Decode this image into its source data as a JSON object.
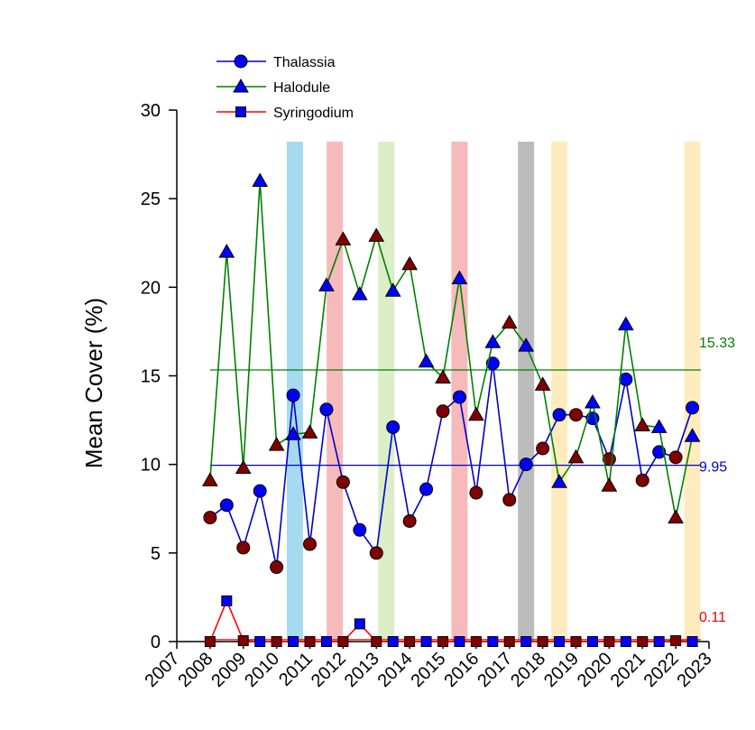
{
  "chart_data": {
    "type": "line",
    "title": "",
    "xlabel": "",
    "ylabel": "Mean Cover (%)",
    "xlim": [
      2007,
      2023
    ],
    "ylim": [
      0,
      30
    ],
    "x_ticks": [
      "2007",
      "2008",
      "2009",
      "2010",
      "2011",
      "2012",
      "2013",
      "2014",
      "2015",
      "2016",
      "2017",
      "2018",
      "2019",
      "2020",
      "2021",
      "2022",
      "2023"
    ],
    "y_ticks": [
      "0",
      "5",
      "10",
      "15",
      "20",
      "25",
      "30"
    ],
    "x": [
      2008.0,
      2008.5,
      2009.0,
      2009.5,
      2010.0,
      2010.5,
      2011.0,
      2011.5,
      2012.0,
      2012.5,
      2013.0,
      2013.5,
      2014.0,
      2014.5,
      2015.0,
      2015.5,
      2016.0,
      2016.5,
      2017.0,
      2017.5,
      2018.0,
      2018.5,
      2019.0,
      2019.5,
      2020.0,
      2020.5,
      2021.0,
      2021.5,
      2022.0,
      2022.5
    ],
    "series": [
      {
        "name": "Thalassia",
        "color": "#0000cc",
        "marker": "circle",
        "values": [
          7.0,
          7.7,
          5.3,
          8.5,
          4.2,
          13.9,
          5.5,
          13.1,
          9.0,
          6.3,
          5.0,
          12.1,
          6.8,
          8.6,
          13.0,
          13.8,
          8.4,
          15.7,
          8.0,
          10.0,
          10.9,
          12.8,
          12.8,
          12.6,
          10.3,
          14.8,
          9.1,
          10.7,
          10.4,
          13.2
        ],
        "mean": 9.95,
        "mean_label": "9.95"
      },
      {
        "name": "Halodule",
        "color": "#008000",
        "marker": "triangle",
        "values": [
          9.1,
          22.0,
          9.8,
          26.0,
          11.1,
          11.7,
          11.8,
          20.1,
          22.7,
          19.6,
          22.9,
          19.8,
          21.3,
          15.8,
          14.9,
          20.5,
          12.8,
          16.9,
          18.0,
          16.7,
          14.5,
          9.0,
          10.4,
          13.5,
          8.8,
          17.9,
          12.2,
          12.1,
          7.0,
          11.6
        ],
        "mean": 15.33,
        "mean_label": "15.33"
      },
      {
        "name": "Syringodium",
        "color": "#ff0000",
        "marker": "square",
        "values": [
          0.0,
          2.3,
          0.05,
          0.0,
          0.0,
          0.0,
          0.0,
          0.0,
          0.0,
          1.0,
          0.0,
          0.0,
          0.0,
          0.0,
          0.0,
          0.0,
          0.0,
          0.0,
          0.0,
          0.0,
          0.0,
          0.0,
          0.0,
          0.0,
          0.0,
          0.0,
          0.0,
          0.0,
          0.05,
          0.0
        ],
        "mean": 0.11,
        "mean_label": "0.11"
      }
    ],
    "dark_marker_points": {
      "Thalassia": [
        0,
        2,
        4,
        6,
        8,
        10,
        12,
        14,
        16,
        18,
        20,
        22,
        24,
        26,
        28
      ],
      "Halodule": [
        0,
        2,
        4,
        6,
        8,
        10,
        12,
        14,
        16,
        18,
        20,
        22,
        24,
        26,
        28
      ],
      "Syringodium": [
        0,
        2,
        4,
        6,
        8,
        10,
        12,
        14,
        16,
        18,
        20,
        22,
        24,
        26,
        28
      ]
    },
    "dark_marker_color": "#800000",
    "event_bands": [
      {
        "x": 2010.55,
        "color": "#87ceeb"
      },
      {
        "x": 2011.75,
        "color": "#f4a3a3"
      },
      {
        "x": 2013.3,
        "color": "#cde8b5"
      },
      {
        "x": 2015.5,
        "color": "#f4a3a3"
      },
      {
        "x": 2017.5,
        "color": "#a6a6a6"
      },
      {
        "x": 2018.5,
        "color": "#fde5a8"
      },
      {
        "x": 2022.5,
        "color": "#fde5a8"
      }
    ],
    "legend_position": "top-left"
  }
}
